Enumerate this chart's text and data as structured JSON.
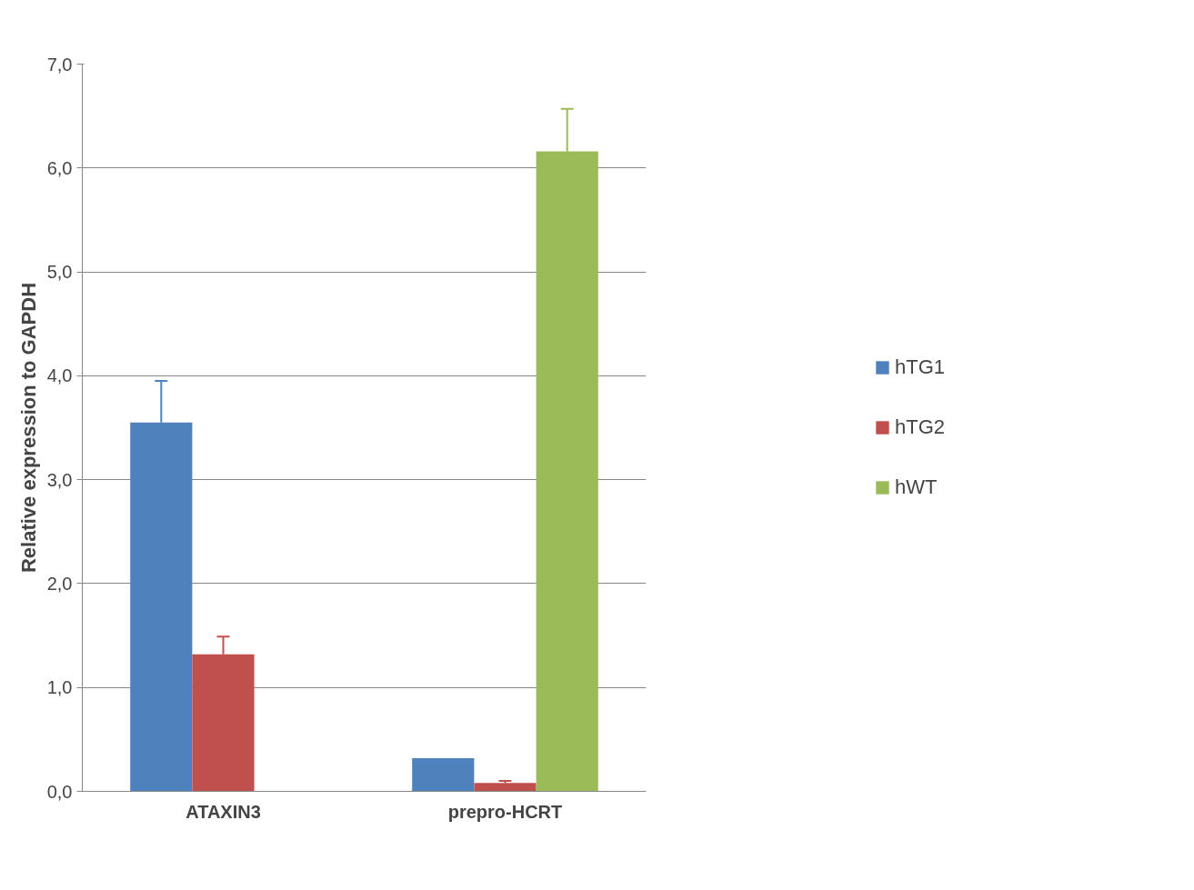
{
  "chart_data": {
    "type": "bar",
    "ylabel": "Relative expression to GAPDH",
    "categories": [
      "ATAXIN3",
      "prepro-HCRT"
    ],
    "series": [
      {
        "name": "hTG1",
        "color": "#4f81bd",
        "values": [
          3.55,
          0.32
        ],
        "errors": [
          [
            3.55,
            3.95
          ],
          null
        ]
      },
      {
        "name": "hTG2",
        "color": "#c0504d",
        "values": [
          1.32,
          0.08
        ],
        "errors": [
          [
            1.32,
            1.49
          ],
          [
            0.08,
            0.1
          ]
        ]
      },
      {
        "name": "hWT",
        "color": "#9bbb59",
        "values": [
          null,
          6.16
        ],
        "errors": [
          null,
          [
            6.16,
            6.57
          ]
        ]
      }
    ],
    "ylim": [
      0,
      7
    ],
    "yticks": [
      {
        "value": 0,
        "label": "0,0"
      },
      {
        "value": 1,
        "label": "1,0"
      },
      {
        "value": 2,
        "label": "2,0"
      },
      {
        "value": 3,
        "label": "3,0"
      },
      {
        "value": 4,
        "label": "4,0"
      },
      {
        "value": 5,
        "label": "5,0"
      },
      {
        "value": 6,
        "label": "6,0"
      },
      {
        "value": 7,
        "label": "7,0"
      }
    ],
    "grid": "y",
    "legend": "right"
  }
}
